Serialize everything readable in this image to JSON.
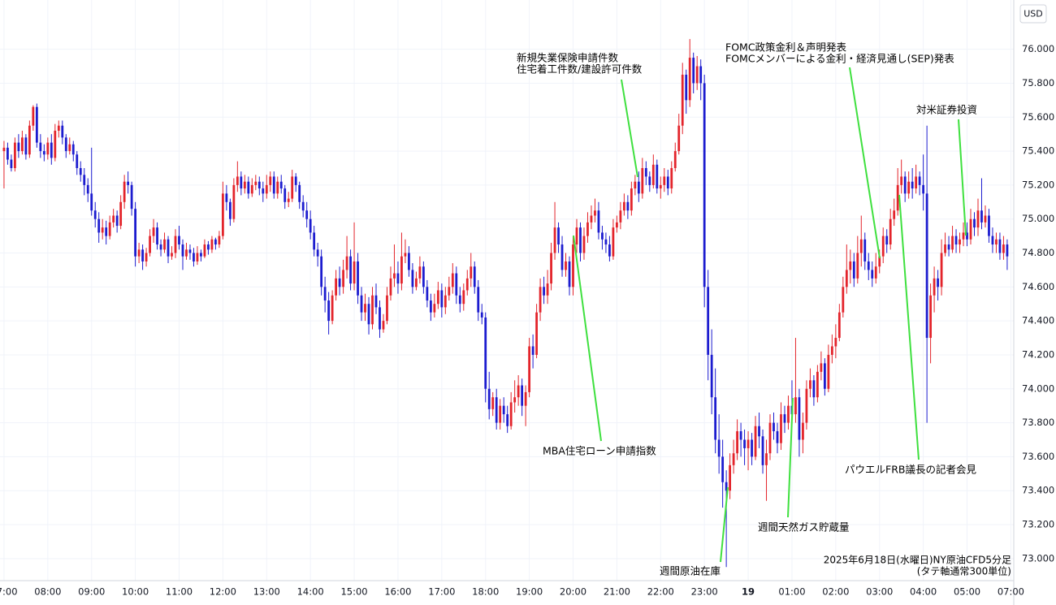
{
  "chart_data": {
    "type": "candlestick",
    "y_unit": "USD",
    "up_color": "#e3242b",
    "down_color": "#1c1ccf",
    "grid": true,
    "xlim": [
      -1.1,
      276.8
    ],
    "xticks": [
      {
        "value": 0,
        "label": "07:00"
      },
      {
        "value": 12,
        "label": "08:00"
      },
      {
        "value": 24,
        "label": "09:00"
      },
      {
        "value": 36,
        "label": "10:00"
      },
      {
        "value": 48,
        "label": "11:00"
      },
      {
        "value": 60,
        "label": "12:00"
      },
      {
        "value": 72,
        "label": "13:00"
      },
      {
        "value": 84,
        "label": "14:00"
      },
      {
        "value": 96,
        "label": "15:00"
      },
      {
        "value": 108,
        "label": "16:00"
      },
      {
        "value": 120,
        "label": "17:00"
      },
      {
        "value": 132,
        "label": "18:00"
      },
      {
        "value": 144,
        "label": "19:00"
      },
      {
        "value": 156,
        "label": "20:00"
      },
      {
        "value": 168,
        "label": "21:00"
      },
      {
        "value": 180,
        "label": "22:00"
      },
      {
        "value": 192,
        "label": "23:00"
      },
      {
        "value": 204,
        "label": "19"
      },
      {
        "value": 216,
        "label": "01:00"
      },
      {
        "value": 228,
        "label": "02:00"
      },
      {
        "value": 240,
        "label": "03:00"
      },
      {
        "value": 252,
        "label": "04:00"
      },
      {
        "value": 264,
        "label": "05:00"
      },
      {
        "value": 276,
        "label": "07:00"
      }
    ],
    "ylim": [
      72.87,
      76.29
    ],
    "yticks": [
      {
        "value": 73.0,
        "label": "73.000"
      },
      {
        "value": 73.2,
        "label": "73.200"
      },
      {
        "value": 73.4,
        "label": "73.400"
      },
      {
        "value": 73.6,
        "label": "73.600"
      },
      {
        "value": 73.8,
        "label": "73.800"
      },
      {
        "value": 74.0,
        "label": "74.000"
      },
      {
        "value": 74.2,
        "label": "74.200"
      },
      {
        "value": 74.4,
        "label": "74.400"
      },
      {
        "value": 74.6,
        "label": "74.600"
      },
      {
        "value": 74.8,
        "label": "74.800"
      },
      {
        "value": 75.0,
        "label": "75.000"
      },
      {
        "value": 75.2,
        "label": "75.200"
      },
      {
        "value": 75.4,
        "label": "75.400"
      },
      {
        "value": 75.6,
        "label": "75.600"
      },
      {
        "value": 75.8,
        "label": "75.800"
      },
      {
        "value": 76.0,
        "label": "76.000"
      }
    ],
    "open": [
      75.4,
      75.42,
      75.35,
      75.3,
      75.45,
      75.4,
      75.48,
      75.38,
      75.55,
      75.66,
      75.45,
      75.4,
      75.38,
      75.45,
      75.36,
      75.52,
      75.55,
      75.48,
      75.4,
      75.44,
      75.38,
      75.3,
      75.26,
      75.2,
      75.15,
      75.05,
      75.0,
      74.92,
      74.95,
      74.9,
      74.98,
      75.02,
      74.96,
      75.1,
      75.22,
      75.2,
      75.06,
      74.78,
      74.82,
      74.75,
      74.8,
      74.9,
      74.95,
      74.85,
      74.82,
      74.88,
      74.78,
      74.8,
      74.9,
      74.85,
      74.78,
      74.82,
      74.8,
      74.75,
      74.8,
      74.78,
      74.85,
      74.82,
      74.88,
      74.85,
      74.9,
      75.15,
      75.1,
      75.0,
      75.2,
      75.25,
      75.18,
      75.22,
      75.15,
      75.2,
      75.22,
      75.18,
      75.15,
      75.2,
      75.25,
      75.15,
      75.22,
      75.18,
      75.1,
      75.12,
      75.25,
      75.2,
      75.1,
      75.05,
      75.0,
      74.92,
      74.82,
      74.78,
      74.6,
      74.52,
      74.4,
      74.55,
      74.65,
      74.6,
      74.7,
      74.78,
      74.62,
      74.75,
      74.55,
      74.45,
      74.5,
      74.38,
      74.55,
      74.48,
      74.35,
      74.4,
      74.55,
      74.65,
      74.68,
      74.62,
      74.78,
      74.8,
      74.7,
      74.6,
      74.65,
      74.72,
      74.6,
      74.52,
      74.45,
      74.5,
      74.58,
      74.48,
      74.55,
      74.6,
      74.68,
      74.55,
      74.5,
      74.58,
      74.65,
      74.72,
      74.6,
      74.45,
      74.42,
      74.0,
      73.88,
      73.95,
      73.8,
      73.9,
      73.85,
      73.78,
      73.92,
      73.95,
      74.02,
      73.9,
      73.98,
      74.25,
      74.2,
      74.45,
      74.6,
      74.55,
      74.62,
      74.8,
      74.95,
      74.85,
      74.7,
      74.75,
      74.6,
      74.85,
      74.95,
      74.8,
      74.9,
      74.98,
      75.02,
      75.05,
      74.92,
      74.88,
      74.85,
      74.78,
      74.95,
      74.98,
      75.05,
      75.1,
      75.05,
      75.18,
      75.22,
      75.15,
      75.3,
      75.25,
      75.2,
      75.32,
      75.18,
      75.2,
      75.25,
      75.18,
      75.3,
      75.4,
      75.55,
      75.85,
      75.7,
      75.95,
      75.8,
      75.9,
      75.8,
      74.6,
      74.2,
      73.95,
      73.7,
      73.6,
      73.45,
      73.4,
      73.55,
      73.62,
      73.75,
      73.7,
      73.65,
      73.7,
      73.6,
      73.78,
      73.72,
      73.55,
      73.62,
      73.8,
      73.75,
      73.68,
      73.85,
      73.8,
      73.9,
      73.85,
      73.95,
      73.7,
      73.8,
      74.0,
      74.05,
      73.95,
      74.1,
      74.15,
      74.0,
      74.2,
      74.25,
      74.3,
      74.45,
      74.6,
      74.7,
      74.75,
      74.65,
      74.8,
      74.88,
      74.75,
      74.7,
      74.65,
      74.72,
      74.78,
      74.9,
      74.85,
      75.0,
      75.05,
      75.2,
      75.25,
      75.15,
      75.22,
      75.18,
      75.25,
      75.2,
      75.15,
      74.3,
      74.55,
      74.65,
      74.6,
      74.8,
      74.85,
      74.82,
      74.9,
      74.85,
      74.88,
      74.92,
      74.88,
      75.0,
      74.95,
      75.05,
      74.98,
      75.02,
      74.9,
      74.85,
      74.88,
      74.8,
      74.85
    ],
    "high": [
      75.46,
      75.45,
      75.38,
      75.48,
      75.5,
      75.52,
      75.5,
      75.58,
      75.67,
      75.68,
      75.5,
      75.44,
      75.48,
      75.5,
      75.56,
      75.58,
      75.58,
      75.5,
      75.48,
      75.46,
      75.4,
      75.34,
      75.3,
      75.24,
      75.42,
      75.1,
      75.04,
      75.0,
      74.99,
      75.02,
      75.06,
      75.05,
      75.14,
      75.26,
      75.28,
      75.22,
      75.1,
      74.86,
      74.85,
      74.83,
      74.94,
      75.0,
      74.98,
      74.88,
      74.92,
      74.9,
      74.84,
      74.94,
      74.96,
      74.88,
      74.86,
      74.85,
      74.83,
      74.84,
      74.82,
      74.88,
      74.87,
      74.9,
      74.89,
      74.93,
      75.22,
      75.2,
      75.12,
      75.24,
      75.34,
      75.28,
      75.26,
      75.25,
      75.24,
      75.26,
      75.25,
      75.22,
      75.26,
      75.28,
      75.28,
      75.25,
      75.26,
      75.2,
      75.16,
      75.29,
      75.27,
      75.22,
      75.14,
      75.1,
      75.05,
      74.96,
      74.86,
      74.82,
      74.66,
      74.57,
      74.58,
      74.7,
      74.72,
      74.76,
      74.9,
      74.82,
      74.98,
      74.8,
      74.6,
      74.56,
      74.54,
      74.6,
      74.62,
      74.52,
      74.44,
      74.6,
      74.72,
      74.85,
      74.75,
      74.92,
      74.88,
      74.84,
      74.74,
      74.69,
      74.78,
      74.75,
      74.64,
      74.56,
      74.56,
      74.63,
      74.62,
      74.6,
      74.66,
      74.74,
      74.72,
      74.6,
      74.62,
      74.7,
      74.8,
      74.75,
      74.64,
      74.5,
      74.45,
      74.1,
      73.98,
      74.0,
      73.94,
      73.95,
      73.9,
      73.98,
      74.05,
      74.08,
      74.06,
      74.02,
      74.3,
      74.32,
      74.5,
      74.65,
      74.66,
      74.7,
      74.86,
      75.1,
      74.98,
      74.9,
      74.8,
      74.78,
      74.9,
      75.0,
      74.98,
      74.95,
      75.04,
      75.08,
      75.12,
      75.1,
      74.96,
      74.92,
      74.9,
      75.0,
      75.02,
      75.1,
      75.15,
      75.14,
      75.22,
      75.26,
      75.28,
      75.36,
      75.34,
      75.28,
      75.38,
      75.35,
      75.25,
      75.3,
      75.29,
      75.34,
      75.45,
      75.62,
      75.92,
      75.88,
      76.06,
      75.98,
      75.96,
      75.94,
      75.85,
      74.7,
      74.35,
      74.12,
      73.85,
      73.7,
      73.52,
      73.62,
      73.7,
      73.82,
      73.8,
      73.76,
      73.75,
      73.74,
      73.84,
      73.86,
      73.76,
      73.7,
      73.85,
      73.86,
      73.8,
      73.92,
      73.9,
      73.96,
      74.05,
      74.3,
      74.0,
      73.86,
      74.05,
      74.12,
      74.08,
      74.14,
      74.22,
      74.18,
      74.26,
      74.32,
      74.38,
      74.5,
      74.66,
      74.85,
      74.82,
      74.8,
      74.9,
      75.02,
      74.92,
      74.8,
      74.75,
      74.8,
      74.82,
      74.95,
      74.94,
      75.06,
      75.12,
      75.3,
      75.35,
      75.28,
      75.28,
      75.3,
      75.32,
      75.28,
      75.38,
      75.55,
      74.62,
      74.72,
      74.7,
      74.88,
      74.92,
      74.9,
      74.96,
      74.94,
      74.92,
      74.98,
      74.98,
      75.06,
      75.04,
      75.12,
      75.24,
      75.08,
      75.06,
      74.95,
      74.92,
      74.92,
      74.9,
      74.88
    ],
    "low": [
      75.18,
      75.32,
      75.28,
      75.28,
      75.36,
      75.38,
      75.35,
      75.36,
      75.52,
      75.42,
      75.36,
      75.34,
      75.35,
      75.32,
      75.34,
      75.48,
      75.44,
      75.36,
      75.38,
      75.34,
      75.26,
      75.22,
      75.14,
      75.1,
      75.02,
      74.95,
      74.86,
      74.88,
      74.85,
      74.88,
      74.95,
      74.92,
      74.94,
      75.06,
      75.15,
      75.02,
      74.72,
      74.74,
      74.7,
      74.72,
      74.78,
      74.86,
      74.82,
      74.78,
      74.8,
      74.74,
      74.76,
      74.77,
      74.82,
      74.7,
      74.76,
      74.76,
      74.72,
      74.73,
      74.75,
      74.77,
      74.79,
      74.8,
      74.82,
      74.83,
      74.88,
      75.05,
      74.96,
      74.98,
      75.16,
      75.14,
      75.15,
      75.12,
      75.13,
      75.17,
      75.14,
      75.1,
      75.12,
      75.16,
      75.12,
      75.12,
      75.15,
      75.06,
      75.07,
      75.1,
      75.16,
      75.06,
      75.01,
      74.95,
      74.88,
      74.78,
      74.72,
      74.55,
      74.45,
      74.32,
      74.38,
      74.52,
      74.55,
      74.56,
      74.65,
      74.58,
      74.58,
      74.5,
      74.4,
      74.4,
      74.32,
      74.35,
      74.44,
      74.3,
      74.33,
      74.38,
      74.52,
      74.6,
      74.56,
      74.58,
      74.74,
      74.66,
      74.56,
      74.58,
      74.62,
      74.56,
      74.48,
      74.4,
      74.42,
      74.47,
      74.42,
      74.44,
      74.52,
      74.56,
      74.5,
      74.45,
      74.46,
      74.55,
      74.6,
      74.56,
      74.4,
      74.38,
      73.92,
      73.82,
      73.84,
      73.76,
      73.76,
      73.8,
      73.74,
      73.76,
      73.86,
      73.9,
      73.84,
      73.78,
      73.95,
      74.12,
      74.18,
      74.4,
      74.5,
      74.5,
      74.58,
      74.76,
      74.8,
      74.66,
      74.66,
      74.55,
      74.55,
      74.8,
      74.75,
      74.76,
      74.86,
      74.94,
      74.98,
      74.88,
      74.82,
      74.8,
      74.75,
      74.76,
      74.92,
      74.94,
      75.02,
      75.0,
      75.02,
      75.14,
      75.1,
      75.12,
      75.2,
      75.16,
      75.18,
      75.15,
      75.12,
      75.16,
      75.14,
      75.15,
      75.28,
      75.38,
      75.5,
      75.62,
      75.66,
      75.74,
      75.76,
      75.7,
      74.48,
      74.05,
      73.85,
      73.62,
      73.5,
      73.3,
      72.95,
      73.35,
      73.5,
      73.58,
      73.6,
      73.55,
      73.52,
      73.55,
      73.58,
      73.65,
      73.5,
      73.34,
      73.58,
      73.7,
      73.62,
      73.64,
      73.74,
      73.76,
      73.78,
      73.8,
      73.6,
      73.62,
      73.76,
      73.95,
      73.9,
      73.92,
      74.05,
      73.96,
      73.98,
      74.15,
      74.18,
      74.28,
      74.42,
      74.56,
      74.62,
      74.6,
      74.62,
      74.72,
      74.7,
      74.64,
      74.6,
      74.62,
      74.68,
      74.74,
      74.8,
      74.82,
      74.96,
      75.02,
      75.15,
      75.1,
      75.12,
      75.12,
      75.15,
      75.14,
      75.05,
      73.8,
      74.15,
      74.45,
      74.52,
      74.55,
      74.78,
      74.78,
      74.8,
      74.8,
      74.8,
      74.84,
      74.84,
      74.85,
      74.9,
      74.9,
      74.94,
      74.95,
      74.86,
      74.8,
      74.8,
      74.76,
      74.76,
      74.7
    ],
    "close": [
      75.42,
      75.35,
      75.3,
      75.45,
      75.4,
      75.48,
      75.38,
      75.55,
      75.66,
      75.45,
      75.4,
      75.38,
      75.45,
      75.36,
      75.52,
      75.55,
      75.48,
      75.4,
      75.44,
      75.38,
      75.3,
      75.26,
      75.2,
      75.15,
      75.05,
      75.0,
      74.92,
      74.95,
      74.9,
      74.98,
      75.02,
      74.96,
      75.1,
      75.22,
      75.2,
      75.06,
      74.78,
      74.82,
      74.75,
      74.8,
      74.9,
      74.95,
      74.85,
      74.82,
      74.88,
      74.78,
      74.8,
      74.9,
      74.85,
      74.78,
      74.82,
      74.8,
      74.75,
      74.8,
      74.78,
      74.85,
      74.82,
      74.88,
      74.85,
      74.9,
      75.15,
      75.1,
      75.0,
      75.2,
      75.25,
      75.18,
      75.22,
      75.15,
      75.2,
      75.22,
      75.18,
      75.15,
      75.2,
      75.25,
      75.15,
      75.22,
      75.18,
      75.1,
      75.12,
      75.25,
      75.2,
      75.1,
      75.05,
      75.0,
      74.92,
      74.82,
      74.78,
      74.6,
      74.52,
      74.4,
      74.55,
      74.65,
      74.6,
      74.7,
      74.78,
      74.62,
      74.75,
      74.55,
      74.45,
      74.5,
      74.38,
      74.55,
      74.48,
      74.35,
      74.4,
      74.55,
      74.65,
      74.68,
      74.62,
      74.78,
      74.8,
      74.7,
      74.6,
      74.65,
      74.72,
      74.6,
      74.52,
      74.45,
      74.5,
      74.58,
      74.48,
      74.55,
      74.6,
      74.68,
      74.55,
      74.5,
      74.58,
      74.65,
      74.72,
      74.6,
      74.45,
      74.42,
      74.0,
      73.88,
      73.95,
      73.8,
      73.9,
      73.85,
      73.78,
      73.92,
      73.95,
      74.02,
      73.9,
      73.98,
      74.25,
      74.2,
      74.45,
      74.6,
      74.55,
      74.62,
      74.8,
      74.95,
      74.85,
      74.7,
      74.75,
      74.6,
      74.85,
      74.95,
      74.8,
      74.9,
      74.98,
      75.02,
      75.05,
      74.92,
      74.88,
      74.85,
      74.78,
      74.95,
      74.98,
      75.05,
      75.1,
      75.05,
      75.18,
      75.22,
      75.15,
      75.3,
      75.25,
      75.2,
      75.32,
      75.18,
      75.2,
      75.25,
      75.18,
      75.3,
      75.4,
      75.55,
      75.85,
      75.7,
      75.95,
      75.8,
      75.9,
      75.8,
      74.6,
      74.2,
      73.95,
      73.7,
      73.6,
      73.45,
      73.4,
      73.55,
      73.62,
      73.75,
      73.7,
      73.65,
      73.7,
      73.6,
      73.78,
      73.72,
      73.55,
      73.62,
      73.8,
      73.75,
      73.68,
      73.85,
      73.8,
      73.9,
      73.85,
      73.95,
      73.7,
      73.8,
      74.0,
      74.05,
      73.95,
      74.1,
      74.15,
      74.0,
      74.2,
      74.25,
      74.3,
      74.45,
      74.6,
      74.7,
      74.75,
      74.65,
      74.8,
      74.88,
      74.75,
      74.7,
      74.65,
      74.72,
      74.78,
      74.9,
      74.85,
      75.0,
      75.05,
      75.2,
      75.25,
      75.15,
      75.22,
      75.18,
      75.25,
      75.2,
      75.15,
      74.3,
      74.55,
      74.65,
      74.6,
      74.8,
      74.85,
      74.82,
      74.9,
      74.85,
      74.88,
      74.92,
      74.88,
      75.0,
      74.95,
      75.05,
      74.98,
      75.02,
      74.9,
      74.85,
      74.88,
      74.8,
      74.85,
      74.78
    ],
    "annotations": [
      [
        "新規失業保険申請件数",
        "住宅着工件数/建設許可件数"
      ],
      [
        "FOMC政策金利＆声明発表",
        "FOMCメンバーによる金利・経済見通し(SEP)発表"
      ],
      [
        "対米証券投資"
      ],
      [
        "MBA住宅ローン申請指数"
      ],
      [
        "パウエルFRB議長の記者会見"
      ],
      [
        "週間天然ガス貯蔵量"
      ],
      [
        "週間原油在庫"
      ]
    ],
    "note": [
      "2025年6月18日(水曜日)NY原油CFD5分足",
      "(タテ軸通常300単位)"
    ]
  }
}
